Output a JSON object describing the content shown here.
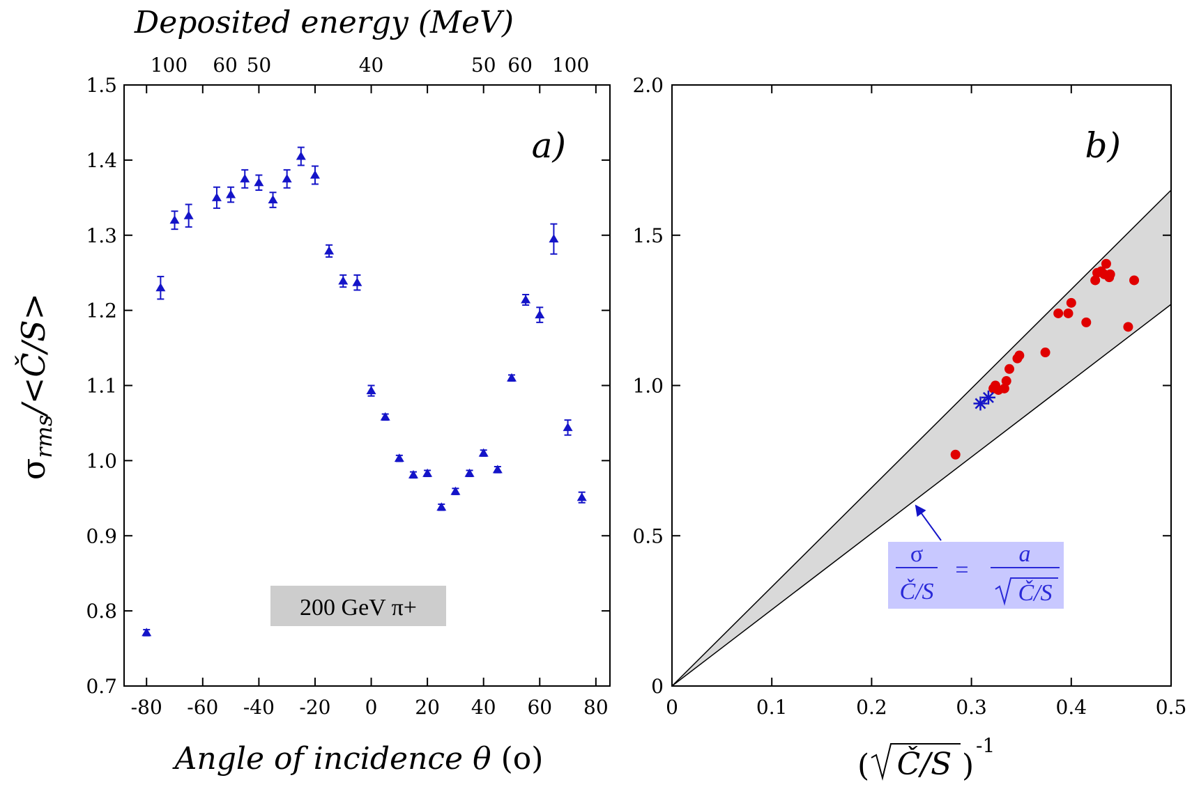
{
  "chart_data": [
    {
      "panel": "a",
      "type": "scatter",
      "panel_label": "a)",
      "xlabel_main": "Angle of incidence θ",
      "xlabel_unit": "(o)",
      "ylabel_sigma": "σ",
      "ylabel_sub": "rms",
      "ylabel_rest": "/<Č/S>",
      "top_axis_label": "Deposited energy (MeV)",
      "top_ticks": [
        {
          "label": "100",
          "x": -72
        },
        {
          "label": "60",
          "x": -52
        },
        {
          "label": "50",
          "x": -40
        },
        {
          "label": "40",
          "x": 0
        },
        {
          "label": "50",
          "x": 40
        },
        {
          "label": "60",
          "x": 53
        },
        {
          "label": "100",
          "x": 71
        }
      ],
      "legend_box": "200 GeV π+",
      "xlim": [
        -88,
        85
      ],
      "ylim": [
        0.7,
        1.5
      ],
      "xticks": [
        -80,
        -60,
        -40,
        -20,
        0,
        20,
        40,
        60,
        80
      ],
      "yticks": [
        0.7,
        0.8,
        0.9,
        1.0,
        1.1,
        1.2,
        1.3,
        1.4,
        1.5
      ],
      "marker_color": "#1414c8",
      "points": [
        {
          "x": -80,
          "y": 0.771,
          "err": 0.004
        },
        {
          "x": -75,
          "y": 1.23,
          "err": 0.015
        },
        {
          "x": -70,
          "y": 1.32,
          "err": 0.012
        },
        {
          "x": -65,
          "y": 1.326,
          "err": 0.015
        },
        {
          "x": -55,
          "y": 1.35,
          "err": 0.014
        },
        {
          "x": -50,
          "y": 1.354,
          "err": 0.01
        },
        {
          "x": -45,
          "y": 1.375,
          "err": 0.012
        },
        {
          "x": -40,
          "y": 1.37,
          "err": 0.01
        },
        {
          "x": -35,
          "y": 1.347,
          "err": 0.01
        },
        {
          "x": -30,
          "y": 1.375,
          "err": 0.012
        },
        {
          "x": -25,
          "y": 1.405,
          "err": 0.012
        },
        {
          "x": -20,
          "y": 1.38,
          "err": 0.012
        },
        {
          "x": -15,
          "y": 1.279,
          "err": 0.008
        },
        {
          "x": -10,
          "y": 1.239,
          "err": 0.008
        },
        {
          "x": -5,
          "y": 1.237,
          "err": 0.01
        },
        {
          "x": 0,
          "y": 1.093,
          "err": 0.007
        },
        {
          "x": 5,
          "y": 1.058,
          "err": 0.004
        },
        {
          "x": 10,
          "y": 1.003,
          "err": 0.004
        },
        {
          "x": 15,
          "y": 0.981,
          "err": 0.004
        },
        {
          "x": 20,
          "y": 0.983,
          "err": 0.004
        },
        {
          "x": 25,
          "y": 0.938,
          "err": 0.004
        },
        {
          "x": 30,
          "y": 0.959,
          "err": 0.004
        },
        {
          "x": 35,
          "y": 0.983,
          "err": 0.004
        },
        {
          "x": 40,
          "y": 1.01,
          "err": 0.004
        },
        {
          "x": 45,
          "y": 0.988,
          "err": 0.004
        },
        {
          "x": 50,
          "y": 1.11,
          "err": 0.004
        },
        {
          "x": 55,
          "y": 1.214,
          "err": 0.007
        },
        {
          "x": 60,
          "y": 1.194,
          "err": 0.01
        },
        {
          "x": 65,
          "y": 1.295,
          "err": 0.02
        },
        {
          "x": 70,
          "y": 1.044,
          "err": 0.01
        },
        {
          "x": 75,
          "y": 0.951,
          "err": 0.007
        }
      ]
    },
    {
      "panel": "b",
      "type": "scatter",
      "panel_label": "b)",
      "xlabel_open": "(",
      "xlabel_radicand": "Č/S",
      "xlabel_close": ")",
      "xlabel_exp": "-1",
      "xlim": [
        0,
        0.5
      ],
      "ylim": [
        0,
        2.0
      ],
      "xticks": [
        0,
        0.1,
        0.2,
        0.3,
        0.4,
        0.5
      ],
      "xtick_labels": [
        "0",
        "0.1",
        "0.2",
        "0.3",
        "0.4",
        "0.5"
      ],
      "yticks": [
        0,
        0.5,
        1.0,
        1.5,
        2.0
      ],
      "ytick_labels": [
        "0",
        "0.5",
        "1.0",
        "1.5",
        "2.0"
      ],
      "band": {
        "upper_slope": 3.3,
        "lower_slope": 2.54,
        "fill_color": "#d9d9d9"
      },
      "formula": {
        "lhs_num": "σ",
        "lhs_den": "Č/S",
        "equals": "=",
        "rhs_num": "a",
        "rhs_den": "Č/S",
        "box_color": "#c8c8ff",
        "text_color": "#2a2ad8",
        "arrow_target": {
          "x": 0.24,
          "y": 0.61
        }
      },
      "red_points_color": "#e00000",
      "red_points": [
        {
          "x": 0.284,
          "y": 0.77
        },
        {
          "x": 0.322,
          "y": 0.99
        },
        {
          "x": 0.324,
          "y": 1.0
        },
        {
          "x": 0.327,
          "y": 0.985
        },
        {
          "x": 0.333,
          "y": 0.99
        },
        {
          "x": 0.335,
          "y": 1.015
        },
        {
          "x": 0.338,
          "y": 1.055
        },
        {
          "x": 0.346,
          "y": 1.09
        },
        {
          "x": 0.348,
          "y": 1.1
        },
        {
          "x": 0.374,
          "y": 1.11
        },
        {
          "x": 0.387,
          "y": 1.24
        },
        {
          "x": 0.397,
          "y": 1.24
        },
        {
          "x": 0.4,
          "y": 1.275
        },
        {
          "x": 0.415,
          "y": 1.21
        },
        {
          "x": 0.424,
          "y": 1.35
        },
        {
          "x": 0.426,
          "y": 1.375
        },
        {
          "x": 0.43,
          "y": 1.38
        },
        {
          "x": 0.433,
          "y": 1.37
        },
        {
          "x": 0.435,
          "y": 1.405
        },
        {
          "x": 0.438,
          "y": 1.36
        },
        {
          "x": 0.439,
          "y": 1.37
        },
        {
          "x": 0.457,
          "y": 1.195
        },
        {
          "x": 0.463,
          "y": 1.35
        }
      ],
      "blue_points_color": "#1414c8",
      "blue_points": [
        {
          "x": 0.309,
          "y": 0.94
        },
        {
          "x": 0.317,
          "y": 0.96
        }
      ]
    }
  ]
}
